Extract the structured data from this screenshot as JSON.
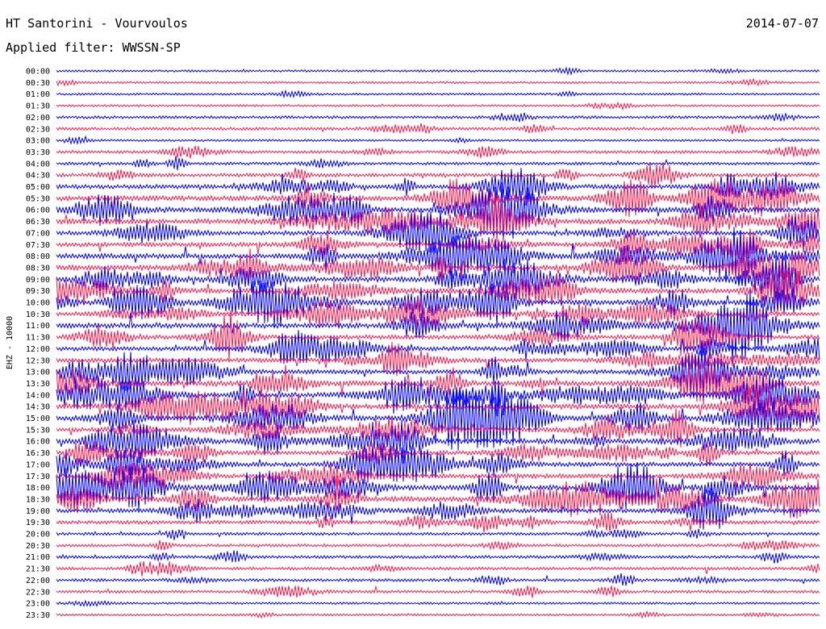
{
  "header": {
    "station": "HT Santorini - Vourvoulos",
    "date": "2014-07-07",
    "filter": "Applied filter: WWSSN-SP"
  },
  "chart_data": {
    "type": "line",
    "title": "HT Santorini - Vourvoulos",
    "ylabel": "EHZ - 10000",
    "row_labels": [
      "00:00",
      "00:30",
      "01:00",
      "01:30",
      "02:00",
      "02:30",
      "03:00",
      "03:30",
      "04:00",
      "04:30",
      "05:00",
      "05:30",
      "06:00",
      "06:30",
      "07:00",
      "07:30",
      "08:00",
      "08:30",
      "09:00",
      "09:30",
      "10:00",
      "10:30",
      "11:00",
      "11:30",
      "12:00",
      "12:30",
      "13:00",
      "13:30",
      "14:00",
      "14:30",
      "15:00",
      "15:30",
      "16:00",
      "16:30",
      "17:00",
      "17:30",
      "18:00",
      "18:30",
      "19:00",
      "19:30",
      "20:00",
      "20:30",
      "21:00",
      "21:30",
      "22:00",
      "22:30",
      "23:00",
      "23:30"
    ],
    "row_activity": [
      1,
      1,
      1,
      1,
      2,
      2,
      1,
      2,
      2,
      3,
      4,
      5,
      5,
      5,
      4,
      4,
      5,
      5,
      5,
      5,
      5,
      4,
      5,
      4,
      4,
      4,
      4,
      5,
      5,
      5,
      5,
      4,
      5,
      4,
      4,
      4,
      5,
      5,
      4,
      3,
      2,
      2,
      2,
      2,
      2,
      2,
      1,
      1
    ],
    "series_colors": [
      "#0000ff",
      "#ff1a4d"
    ],
    "grid": false
  }
}
